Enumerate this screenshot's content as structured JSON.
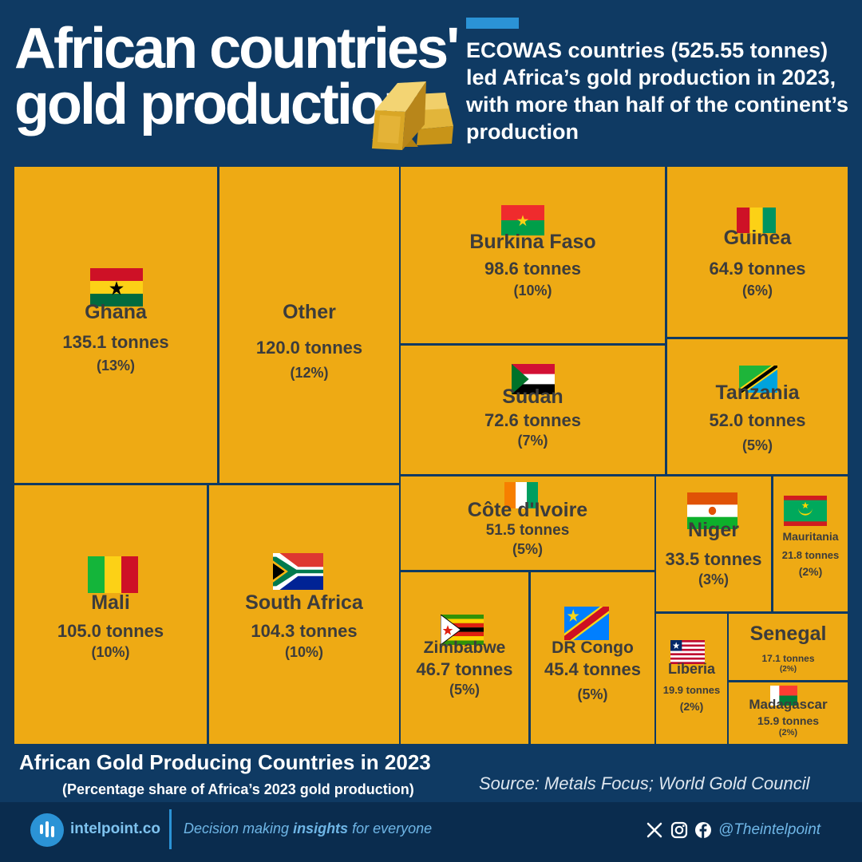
{
  "header": {
    "title_line1": "African countries'",
    "title_line2": "gold production",
    "subtitle": "ECOWAS countries (525.55 tonnes) led Africa’s gold production in 2023, with more than half of the continent’s production"
  },
  "colors": {
    "background": "#0f3a63",
    "tile": "#eeaa14",
    "accent": "#2b93d6",
    "tile_text": "#3c3c3c"
  },
  "icons": {
    "header_icon": "gold-bars-icon"
  },
  "chart_data": {
    "type": "treemap",
    "title": "African Gold Producing Countries in 2023",
    "subtitle": "(Percentage share of Africa’s 2023 gold production)",
    "unit": "tonnes",
    "items": [
      {
        "name": "Ghana",
        "value": 135.1,
        "value_label": "135.1 tonnes",
        "share": "(13%)",
        "flag": "ghana-flag-icon"
      },
      {
        "name": "Other",
        "value": 120.0,
        "value_label": "120.0 tonnes",
        "share": "(12%)",
        "flag": ""
      },
      {
        "name": "Burkina Faso",
        "value": 98.6,
        "value_label": "98.6 tonnes",
        "share": "(10%)",
        "flag": "burkina-faso-flag-icon"
      },
      {
        "name": "Guinea",
        "value": 64.9,
        "value_label": "64.9 tonnes",
        "share": "(6%)",
        "flag": "guinea-flag-icon"
      },
      {
        "name": "Sudan",
        "value": 72.6,
        "value_label": "72.6 tonnes",
        "share": "(7%)",
        "flag": "sudan-flag-icon"
      },
      {
        "name": "Tanzania",
        "value": 52.0,
        "value_label": "52.0 tonnes",
        "share": "(5%)",
        "flag": "tanzania-flag-icon"
      },
      {
        "name": "Mali",
        "value": 105.0,
        "value_label": "105.0 tonnes",
        "share": "(10%)",
        "flag": "mali-flag-icon"
      },
      {
        "name": "South Africa",
        "value": 104.3,
        "value_label": "104.3 tonnes",
        "share": "(10%)",
        "flag": "south-africa-flag-icon"
      },
      {
        "name": "Côte d'Ivoire",
        "value": 51.5,
        "value_label": "51.5 tonnes",
        "share": "(5%)",
        "flag": "cote-divoire-flag-icon"
      },
      {
        "name": "Niger",
        "value": 33.5,
        "value_label": "33.5 tonnes",
        "share": "(3%)",
        "flag": "niger-flag-icon"
      },
      {
        "name": "Mauritania",
        "value": 21.8,
        "value_label": "21.8 tonnes",
        "share": "(2%)",
        "flag": "mauritania-flag-icon"
      },
      {
        "name": "Zimbabwe",
        "value": 46.7,
        "value_label": "46.7 tonnes",
        "share": "(5%)",
        "flag": "zimbabwe-flag-icon"
      },
      {
        "name": "DR Congo",
        "value": 45.4,
        "value_label": "45.4 tonnes",
        "share": "(5%)",
        "flag": "dr-congo-flag-icon"
      },
      {
        "name": "Liberia",
        "value": 19.9,
        "value_label": "19.9 tonnes",
        "share": "(2%)",
        "flag": "liberia-flag-icon"
      },
      {
        "name": "Senegal",
        "value": 17.1,
        "value_label": "17.1 tonnes",
        "share": "(2%)",
        "flag": ""
      },
      {
        "name": "Madagascar",
        "value": 15.9,
        "value_label": "15.9 tonnes",
        "share": "(2%)",
        "flag": "madagascar-flag-icon"
      }
    ]
  },
  "footer": {
    "source": "Source: Metals Focus; World Gold Council",
    "brand": "intelpoint.co",
    "tagline_before": "Decision making ",
    "tagline_bold": "insights",
    "tagline_after": " for everyone",
    "handle": "@Theintelpoint",
    "social_icons": [
      "x-icon",
      "instagram-icon",
      "facebook-icon"
    ]
  }
}
